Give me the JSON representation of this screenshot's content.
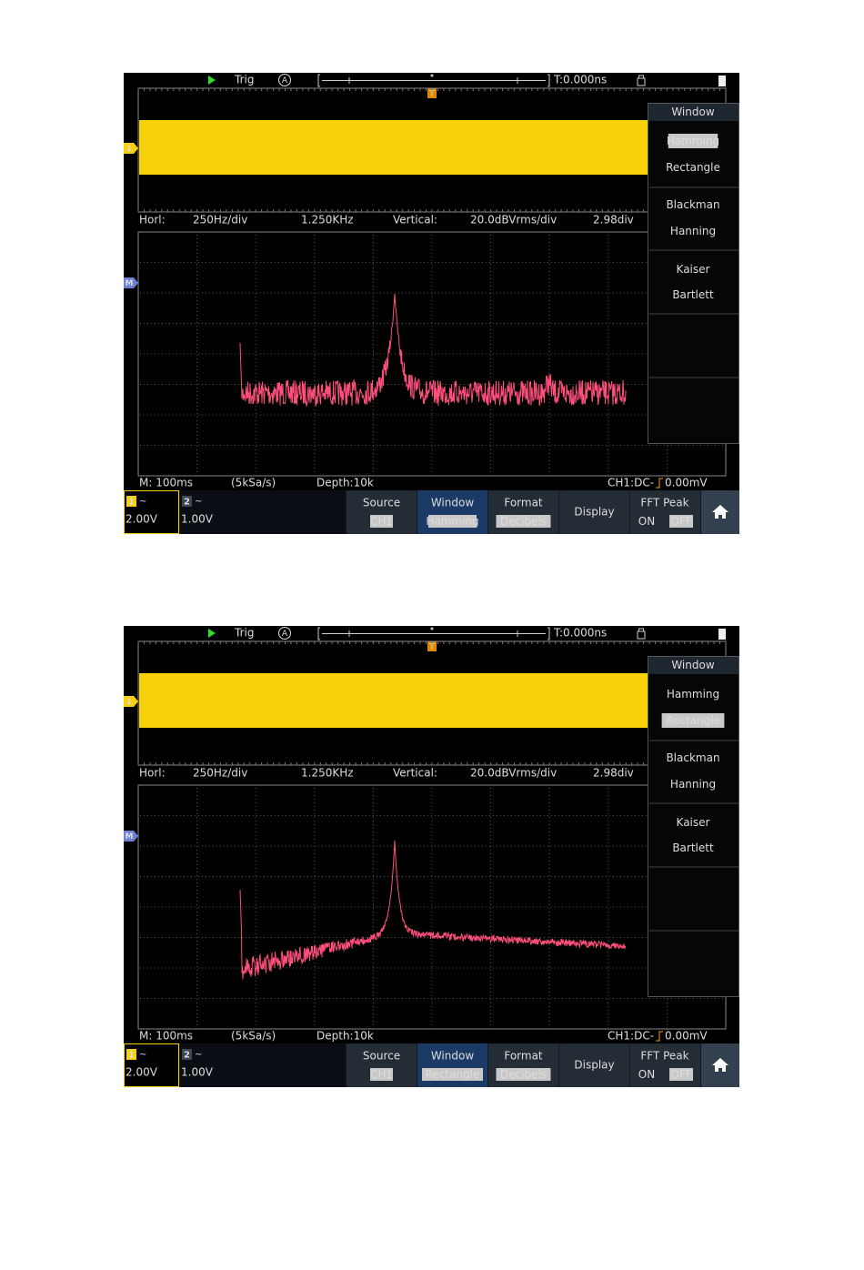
{
  "screens": [
    {
      "top_bar": {
        "trig": "Trig",
        "trig_mode": "A",
        "trig_marker": "T",
        "time": "T:0.000ns"
      },
      "ch1_marker": "1",
      "math_marker": "M",
      "info_bar": {
        "horizontal_label": "Horl:",
        "horizontal_scale": "250Hz/div",
        "center_freq": "1.250KHz",
        "vertical_label": "Vertical:",
        "vertical_scale": "20.0dBVrms/div",
        "offset": "2.98div"
      },
      "status_bar": {
        "timebase": "M: 100ms",
        "sample_rate": "(5kSa/s)",
        "depth": "Depth:10k",
        "trigger": "CH1:DC-",
        "trigger_level": "0.00mV"
      },
      "channels": [
        {
          "number": "1",
          "coupling": "~",
          "scale": "2.00V"
        },
        {
          "number": "2",
          "coupling": "~",
          "scale": "1.00V"
        }
      ],
      "menu": [
        {
          "label": "Source",
          "value": "CH1"
        },
        {
          "label": "Window"
        },
        {
          "label": "Format",
          "value": "Decibels"
        },
        {
          "label": "Display"
        }
      ],
      "fft_peak": {
        "label": "FFT  Peak",
        "options": [
          "ON",
          "OFF"
        ],
        "selected": 1
      },
      "window_menu": {
        "title": "Window",
        "options": [
          "Hamming",
          "Rectangle",
          "Blackman",
          "Hanning",
          "Kaiser",
          "Bartlett"
        ],
        "selected": 0
      }
    },
    {
      "top_bar": {
        "trig": "Trig",
        "trig_mode": "A",
        "trig_marker": "T",
        "time": "T:0.000ns"
      },
      "ch1_marker": "1",
      "math_marker": "M",
      "info_bar": {
        "horizontal_label": "Horl:",
        "horizontal_scale": "250Hz/div",
        "center_freq": "1.250KHz",
        "vertical_label": "Vertical:",
        "vertical_scale": "20.0dBVrms/div",
        "offset": "2.98div"
      },
      "status_bar": {
        "timebase": "M: 100ms",
        "sample_rate": "(5kSa/s)",
        "depth": "Depth:10k",
        "trigger": "CH1:DC-",
        "trigger_level": "0.00mV"
      },
      "channels": [
        {
          "number": "1",
          "coupling": "~",
          "scale": "2.00V"
        },
        {
          "number": "2",
          "coupling": "~",
          "scale": "1.00V"
        }
      ],
      "menu": [
        {
          "label": "Source",
          "value": "CH1"
        },
        {
          "label": "Window"
        },
        {
          "label": "Format",
          "value": "Decibels"
        },
        {
          "label": "Display"
        }
      ],
      "fft_peak": {
        "label": "FFT  Peak",
        "options": [
          "ON",
          "OFF"
        ],
        "selected": 1
      },
      "window_menu": {
        "title": "Window",
        "options": [
          "Hamming",
          "Rectangle",
          "Blackman",
          "Hanning",
          "Kaiser",
          "Bartlett"
        ],
        "selected": 1
      }
    }
  ]
}
